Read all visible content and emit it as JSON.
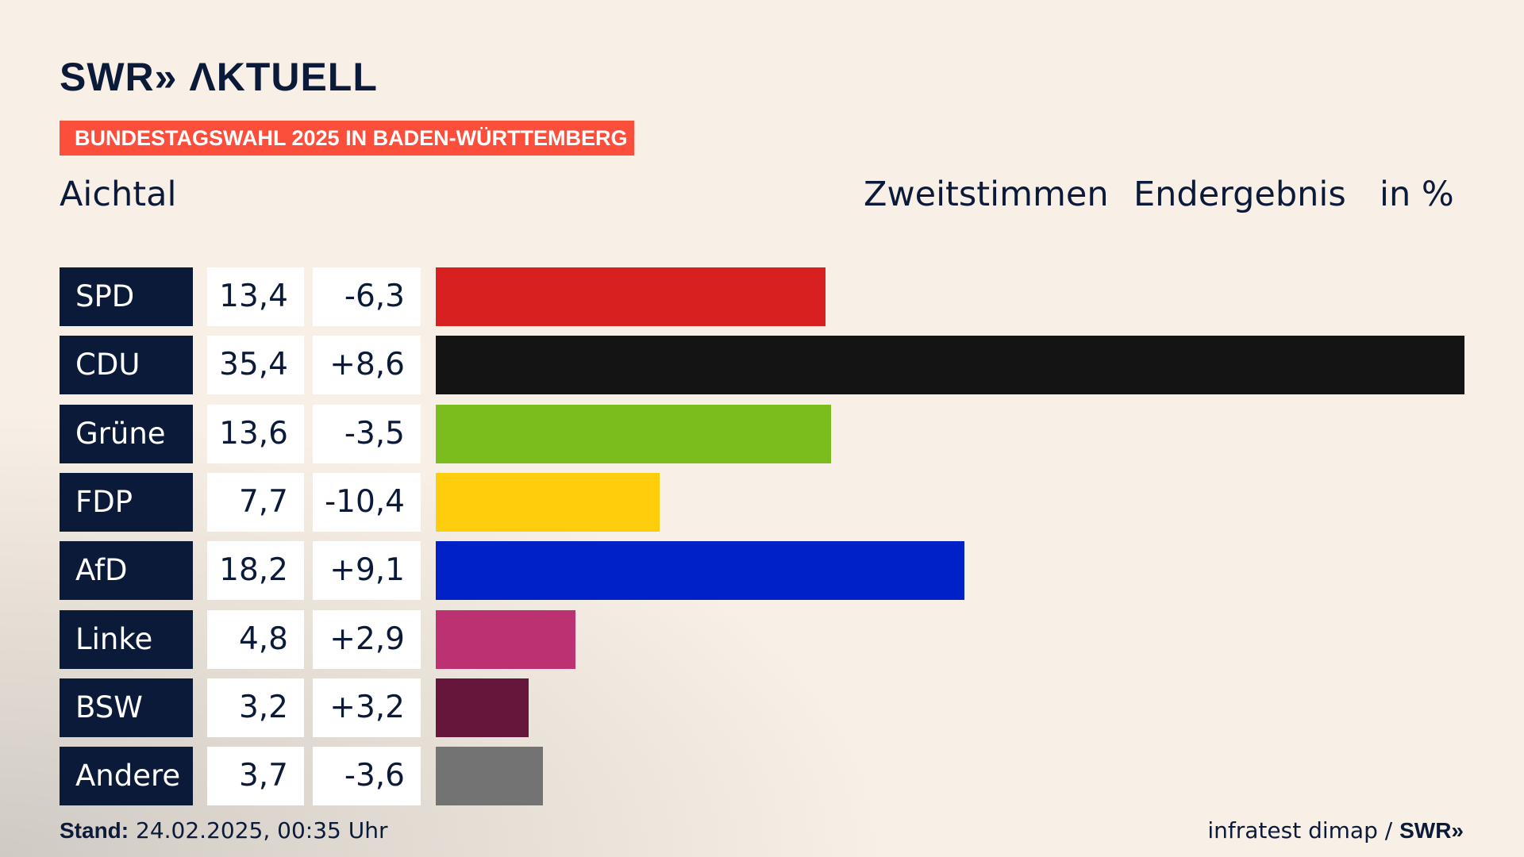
{
  "header": {
    "logo": "SWR» ΛKTUELL",
    "banner": "BUNDESTAGSWAHL 2025 IN BADEN-WÜRTTEMBERG",
    "place": "Aichtal",
    "vote_type": "Zweitstimmen",
    "result_type": "Endergebnis",
    "unit": "in %"
  },
  "footer": {
    "stand_label": "Stand:",
    "stand_value": " 24.02.2025, 00:35 Uhr",
    "source": "infratest dimap / ",
    "source_logo": "SWR»"
  },
  "chart_data": {
    "type": "bar",
    "orientation": "horizontal",
    "title": "Zweitstimmen Endergebnis",
    "unit": "%",
    "xlim": [
      0,
      35.4
    ],
    "categories": [
      "SPD",
      "CDU",
      "Grüne",
      "FDP",
      "AfD",
      "Linke",
      "BSW",
      "Andere"
    ],
    "values": [
      13.4,
      35.4,
      13.6,
      7.7,
      18.2,
      4.8,
      3.2,
      3.7
    ],
    "value_labels": [
      "13,4",
      "35,4",
      "13,6",
      "7,7",
      "18,2",
      "4,8",
      "3,2",
      "3,7"
    ],
    "changes": [
      -6.3,
      8.6,
      -3.5,
      -10.4,
      9.1,
      2.9,
      3.2,
      -3.6
    ],
    "change_labels": [
      "-6,3",
      "+8,6",
      "-3,5",
      "-10,4",
      "+9,1",
      "+2,9",
      "+3,2",
      "-3,6"
    ],
    "colors": [
      "#d82020",
      "#141414",
      "#7abd1d",
      "#fecd0b",
      "#0021c8",
      "#bb3172",
      "#67163b",
      "#737373"
    ]
  }
}
